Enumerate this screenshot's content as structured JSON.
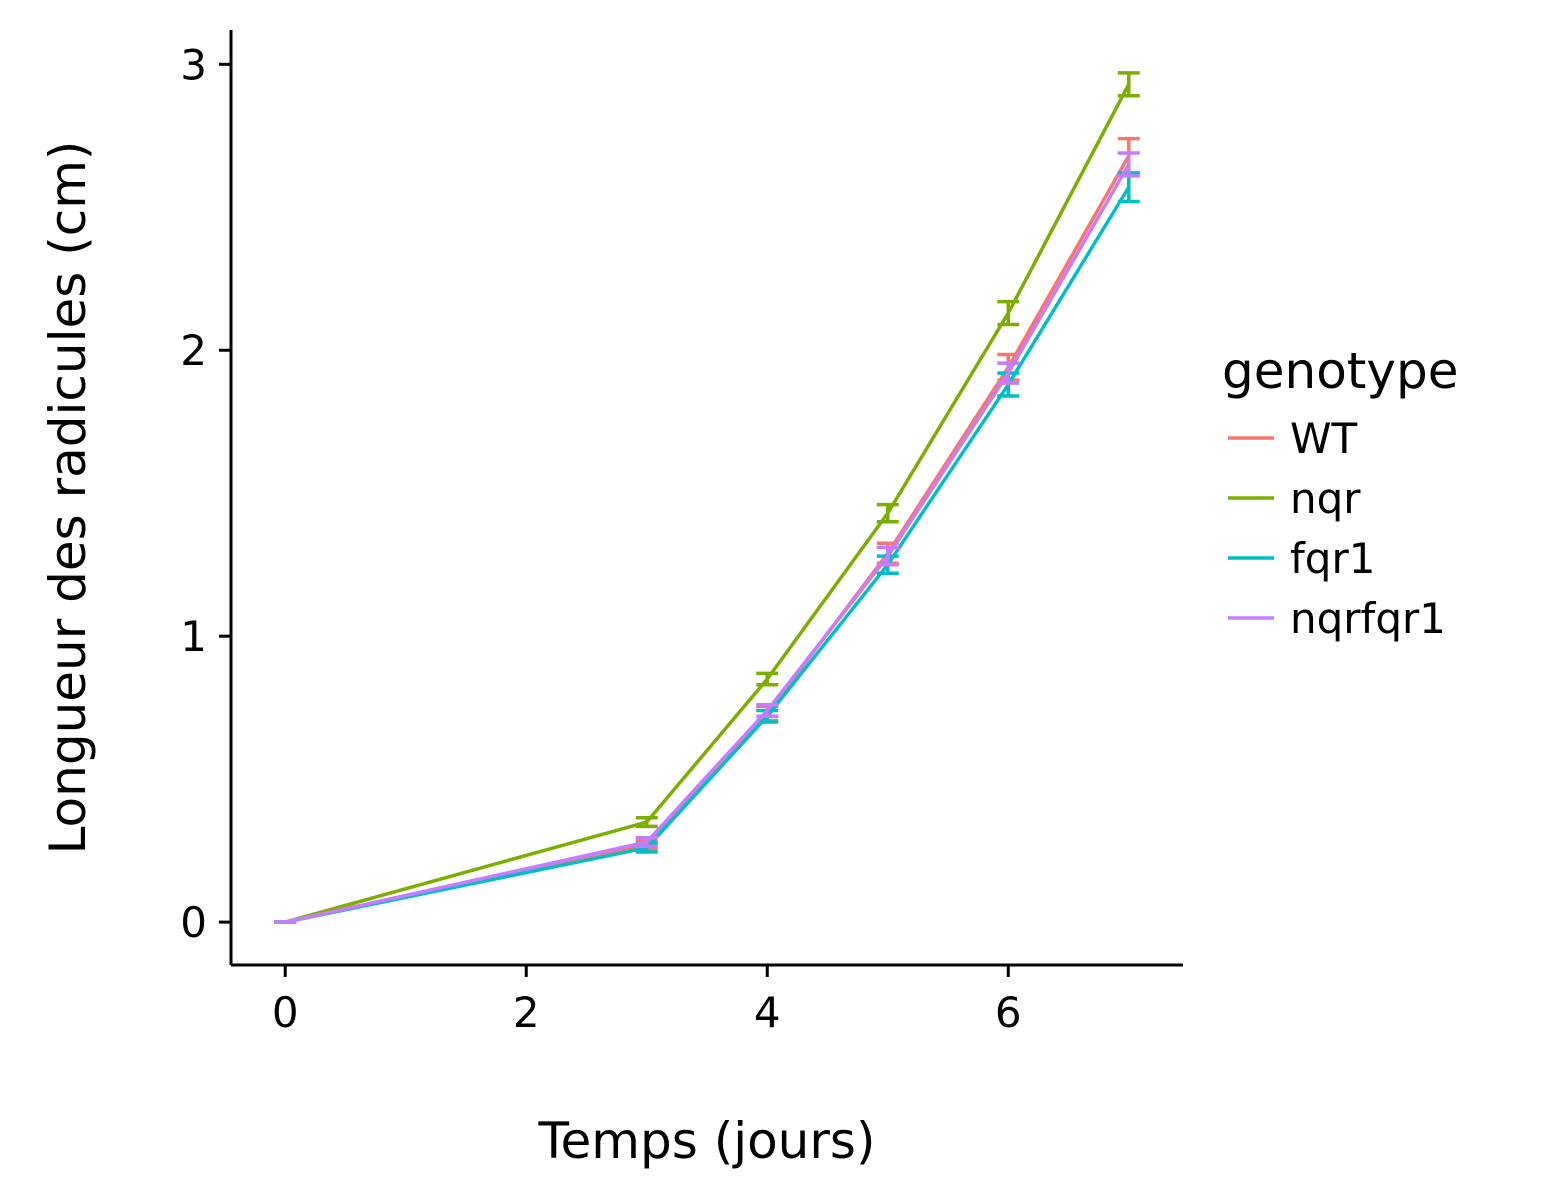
{
  "chart_data": {
    "type": "line",
    "xlabel": "Temps (jours)",
    "ylabel": "Longueur des radicules (cm)",
    "xlim": [
      -0.45,
      7.45
    ],
    "ylim": [
      -0.15,
      3.12
    ],
    "x_ticks": [
      0,
      2,
      4,
      6
    ],
    "y_ticks": [
      0,
      1,
      2,
      3
    ],
    "grid": false,
    "legend": {
      "title": "genotype",
      "position": "right"
    },
    "x": [
      0,
      3,
      4,
      5,
      6,
      7
    ],
    "series": [
      {
        "name": "WT",
        "color": "#F8766D",
        "values": [
          0,
          0.27,
          0.73,
          1.29,
          1.94,
          2.68
        ],
        "errors": [
          0,
          0.015,
          0.025,
          0.035,
          0.045,
          0.06
        ]
      },
      {
        "name": "nqr",
        "color": "#7CAE00",
        "values": [
          0,
          0.35,
          0.85,
          1.43,
          2.13,
          2.93
        ],
        "errors": [
          0,
          0.015,
          0.02,
          0.03,
          0.04,
          0.04
        ]
      },
      {
        "name": "fqr1",
        "color": "#00BFC4",
        "values": [
          0,
          0.26,
          0.72,
          1.25,
          1.88,
          2.57
        ],
        "errors": [
          0,
          0.015,
          0.02,
          0.03,
          0.04,
          0.05
        ]
      },
      {
        "name": "nqrfqr1",
        "color": "#C77CFF",
        "values": [
          0,
          0.28,
          0.74,
          1.28,
          1.92,
          2.65
        ],
        "errors": [
          0,
          0.015,
          0.02,
          0.03,
          0.035,
          0.04
        ]
      }
    ]
  }
}
